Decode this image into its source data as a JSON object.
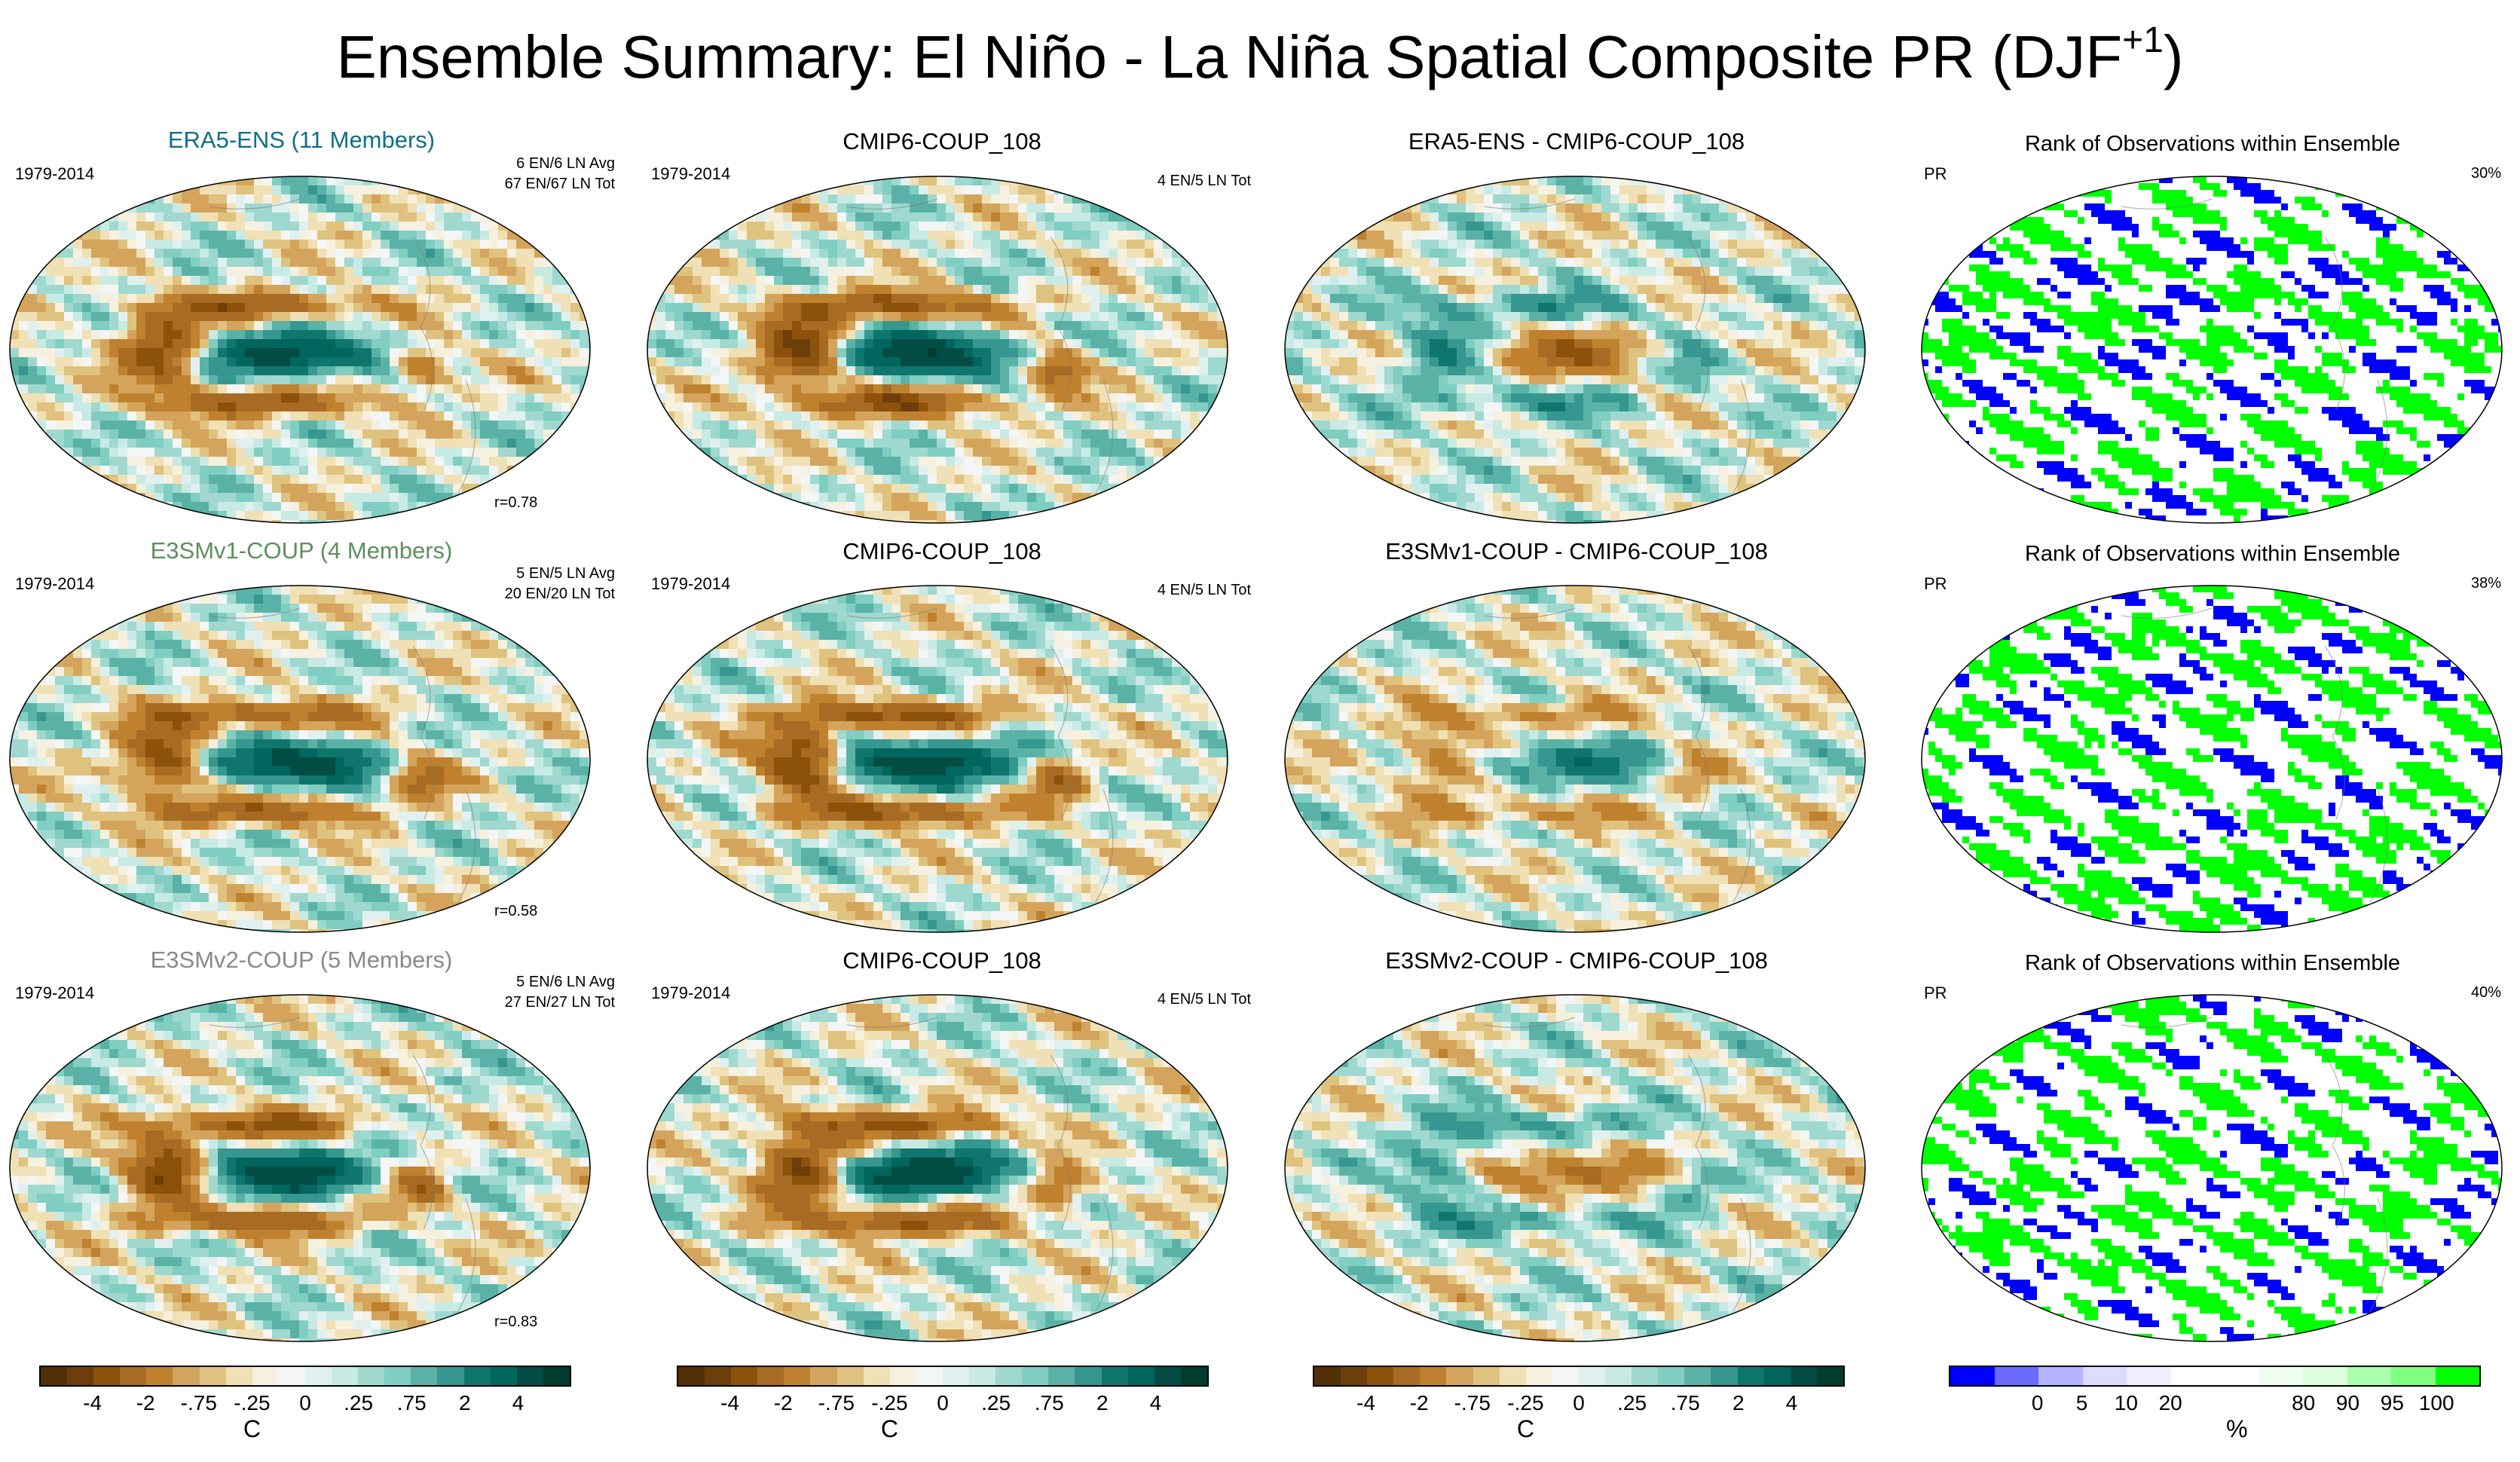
{
  "title_main": "Ensemble Summary: El Niño - La Niña Spatial Composite PR (DJF",
  "title_sup": "+1",
  "title_end": ")",
  "colors": {
    "left_title_blue": "#0f6f86",
    "left_title_green": "#5e8f5c",
    "left_title_gray": "#8a8a8a",
    "rank_blue": "#0000ff",
    "rank_green": "#00ff00"
  },
  "rows": [
    {
      "obs_title": "ERA5-ENS (11 Members)",
      "obs_period": "1979-2014",
      "obs_counts_avg": "6 EN/6 LN Avg",
      "obs_counts_tot": "67 EN/67 LN Tot",
      "obs_r": "r=0.78",
      "model_title": "CMIP6-COUP_108",
      "model_period": "1979-2014",
      "model_counts": "4 EN/5 LN Tot",
      "diff_title": "ERA5-ENS - CMIP6-COUP_108",
      "rank_title": "Rank of Observations within Ensemble",
      "rank_var": "PR",
      "rank_pct": "30%"
    },
    {
      "obs_title": "E3SMv1-COUP (4 Members)",
      "obs_period": "1979-2014",
      "obs_counts_avg": "5 EN/5 LN Avg",
      "obs_counts_tot": "20 EN/20 LN Tot",
      "obs_r": "r=0.58",
      "model_title": "CMIP6-COUP_108",
      "model_period": "1979-2014",
      "model_counts": "4 EN/5 LN Tot",
      "diff_title": "E3SMv1-COUP - CMIP6-COUP_108",
      "rank_title": "Rank of Observations within Ensemble",
      "rank_var": "PR",
      "rank_pct": "38%"
    },
    {
      "obs_title": "E3SMv2-COUP (5 Members)",
      "obs_period": "1979-2014",
      "obs_counts_avg": "5 EN/6 LN Avg",
      "obs_counts_tot": "27 EN/27 LN Tot",
      "obs_r": "r=0.83",
      "model_title": "CMIP6-COUP_108",
      "model_period": "1979-2014",
      "model_counts": "4 EN/5 LN Tot",
      "diff_title": "E3SMv2-COUP - CMIP6-COUP_108",
      "rank_title": "Rank of Observations within Ensemble",
      "rank_var": "PR",
      "rank_pct": "40%"
    }
  ],
  "colorbar_pr": {
    "colors": [
      "#543005",
      "#6d3e0a",
      "#8c510a",
      "#a86b24",
      "#bf812d",
      "#d4a45c",
      "#dfc27d",
      "#f0e0b5",
      "#f6f0df",
      "#f3f6f5",
      "#e0f0ef",
      "#c7eae5",
      "#9fd8cf",
      "#80cdc1",
      "#5ab2a6",
      "#35978f",
      "#0f766d",
      "#01665e",
      "#024c43",
      "#003c30"
    ],
    "ticks": [
      "-4",
      "-2",
      "-.75",
      "-.25",
      "0",
      ".25",
      ".75",
      "2",
      "4"
    ],
    "unit": "C"
  },
  "colorbar_rank": {
    "colors": [
      "#0000ff",
      "#6b6bff",
      "#b4b4ff",
      "#dcdcff",
      "#eeeeff",
      "#ffffff",
      "#ffffff",
      "#eeffee",
      "#dcffdc",
      "#aaffaa",
      "#80ff80",
      "#00ff00"
    ],
    "ticks": [
      "0",
      "5",
      "10",
      "20",
      "80",
      "90",
      "95",
      "100"
    ],
    "unit": "%"
  },
  "chart_data": [
    {
      "type": "heatmap",
      "panel": "ERA5-ENS (11 Members)",
      "variable": "PR",
      "pattern_correlation": 0.78,
      "levels": [
        -4,
        -2,
        -0.75,
        -0.25,
        0,
        0.25,
        0.75,
        2,
        4
      ],
      "unit": "C"
    },
    {
      "type": "heatmap",
      "panel": "CMIP6-COUP_108",
      "variable": "PR",
      "levels": [
        -4,
        -2,
        -0.75,
        -0.25,
        0,
        0.25,
        0.75,
        2,
        4
      ],
      "unit": "C"
    },
    {
      "type": "heatmap",
      "panel": "ERA5-ENS - CMIP6-COUP_108",
      "variable": "PR",
      "levels": [
        -4,
        -2,
        -0.75,
        -0.25,
        0,
        0.25,
        0.75,
        2,
        4
      ],
      "unit": "C"
    },
    {
      "type": "heatmap",
      "panel": "Rank of Observations within Ensemble (row 1)",
      "variable": "PR",
      "pct_outside": 30,
      "levels": [
        0,
        5,
        10,
        20,
        80,
        90,
        95,
        100
      ],
      "unit": "%"
    },
    {
      "type": "heatmap",
      "panel": "E3SMv1-COUP (4 Members)",
      "variable": "PR",
      "pattern_correlation": 0.58,
      "levels": [
        -4,
        -2,
        -0.75,
        -0.25,
        0,
        0.25,
        0.75,
        2,
        4
      ],
      "unit": "C"
    },
    {
      "type": "heatmap",
      "panel": "E3SMv1-COUP - CMIP6-COUP_108",
      "variable": "PR",
      "levels": [
        -4,
        -2,
        -0.75,
        -0.25,
        0,
        0.25,
        0.75,
        2,
        4
      ],
      "unit": "C"
    },
    {
      "type": "heatmap",
      "panel": "Rank of Observations within Ensemble (row 2)",
      "variable": "PR",
      "pct_outside": 38,
      "levels": [
        0,
        5,
        10,
        20,
        80,
        90,
        95,
        100
      ],
      "unit": "%"
    },
    {
      "type": "heatmap",
      "panel": "E3SMv2-COUP (5 Members)",
      "variable": "PR",
      "pattern_correlation": 0.83,
      "levels": [
        -4,
        -2,
        -0.75,
        -0.25,
        0,
        0.25,
        0.75,
        2,
        4
      ],
      "unit": "C"
    },
    {
      "type": "heatmap",
      "panel": "E3SMv2-COUP - CMIP6-COUP_108",
      "variable": "PR",
      "levels": [
        -4,
        -2,
        -0.75,
        -0.25,
        0,
        0.25,
        0.75,
        2,
        4
      ],
      "unit": "C"
    },
    {
      "type": "heatmap",
      "panel": "Rank of Observations within Ensemble (row 3)",
      "variable": "PR",
      "pct_outside": 40,
      "levels": [
        0,
        5,
        10,
        20,
        80,
        90,
        95,
        100
      ],
      "unit": "%"
    }
  ]
}
